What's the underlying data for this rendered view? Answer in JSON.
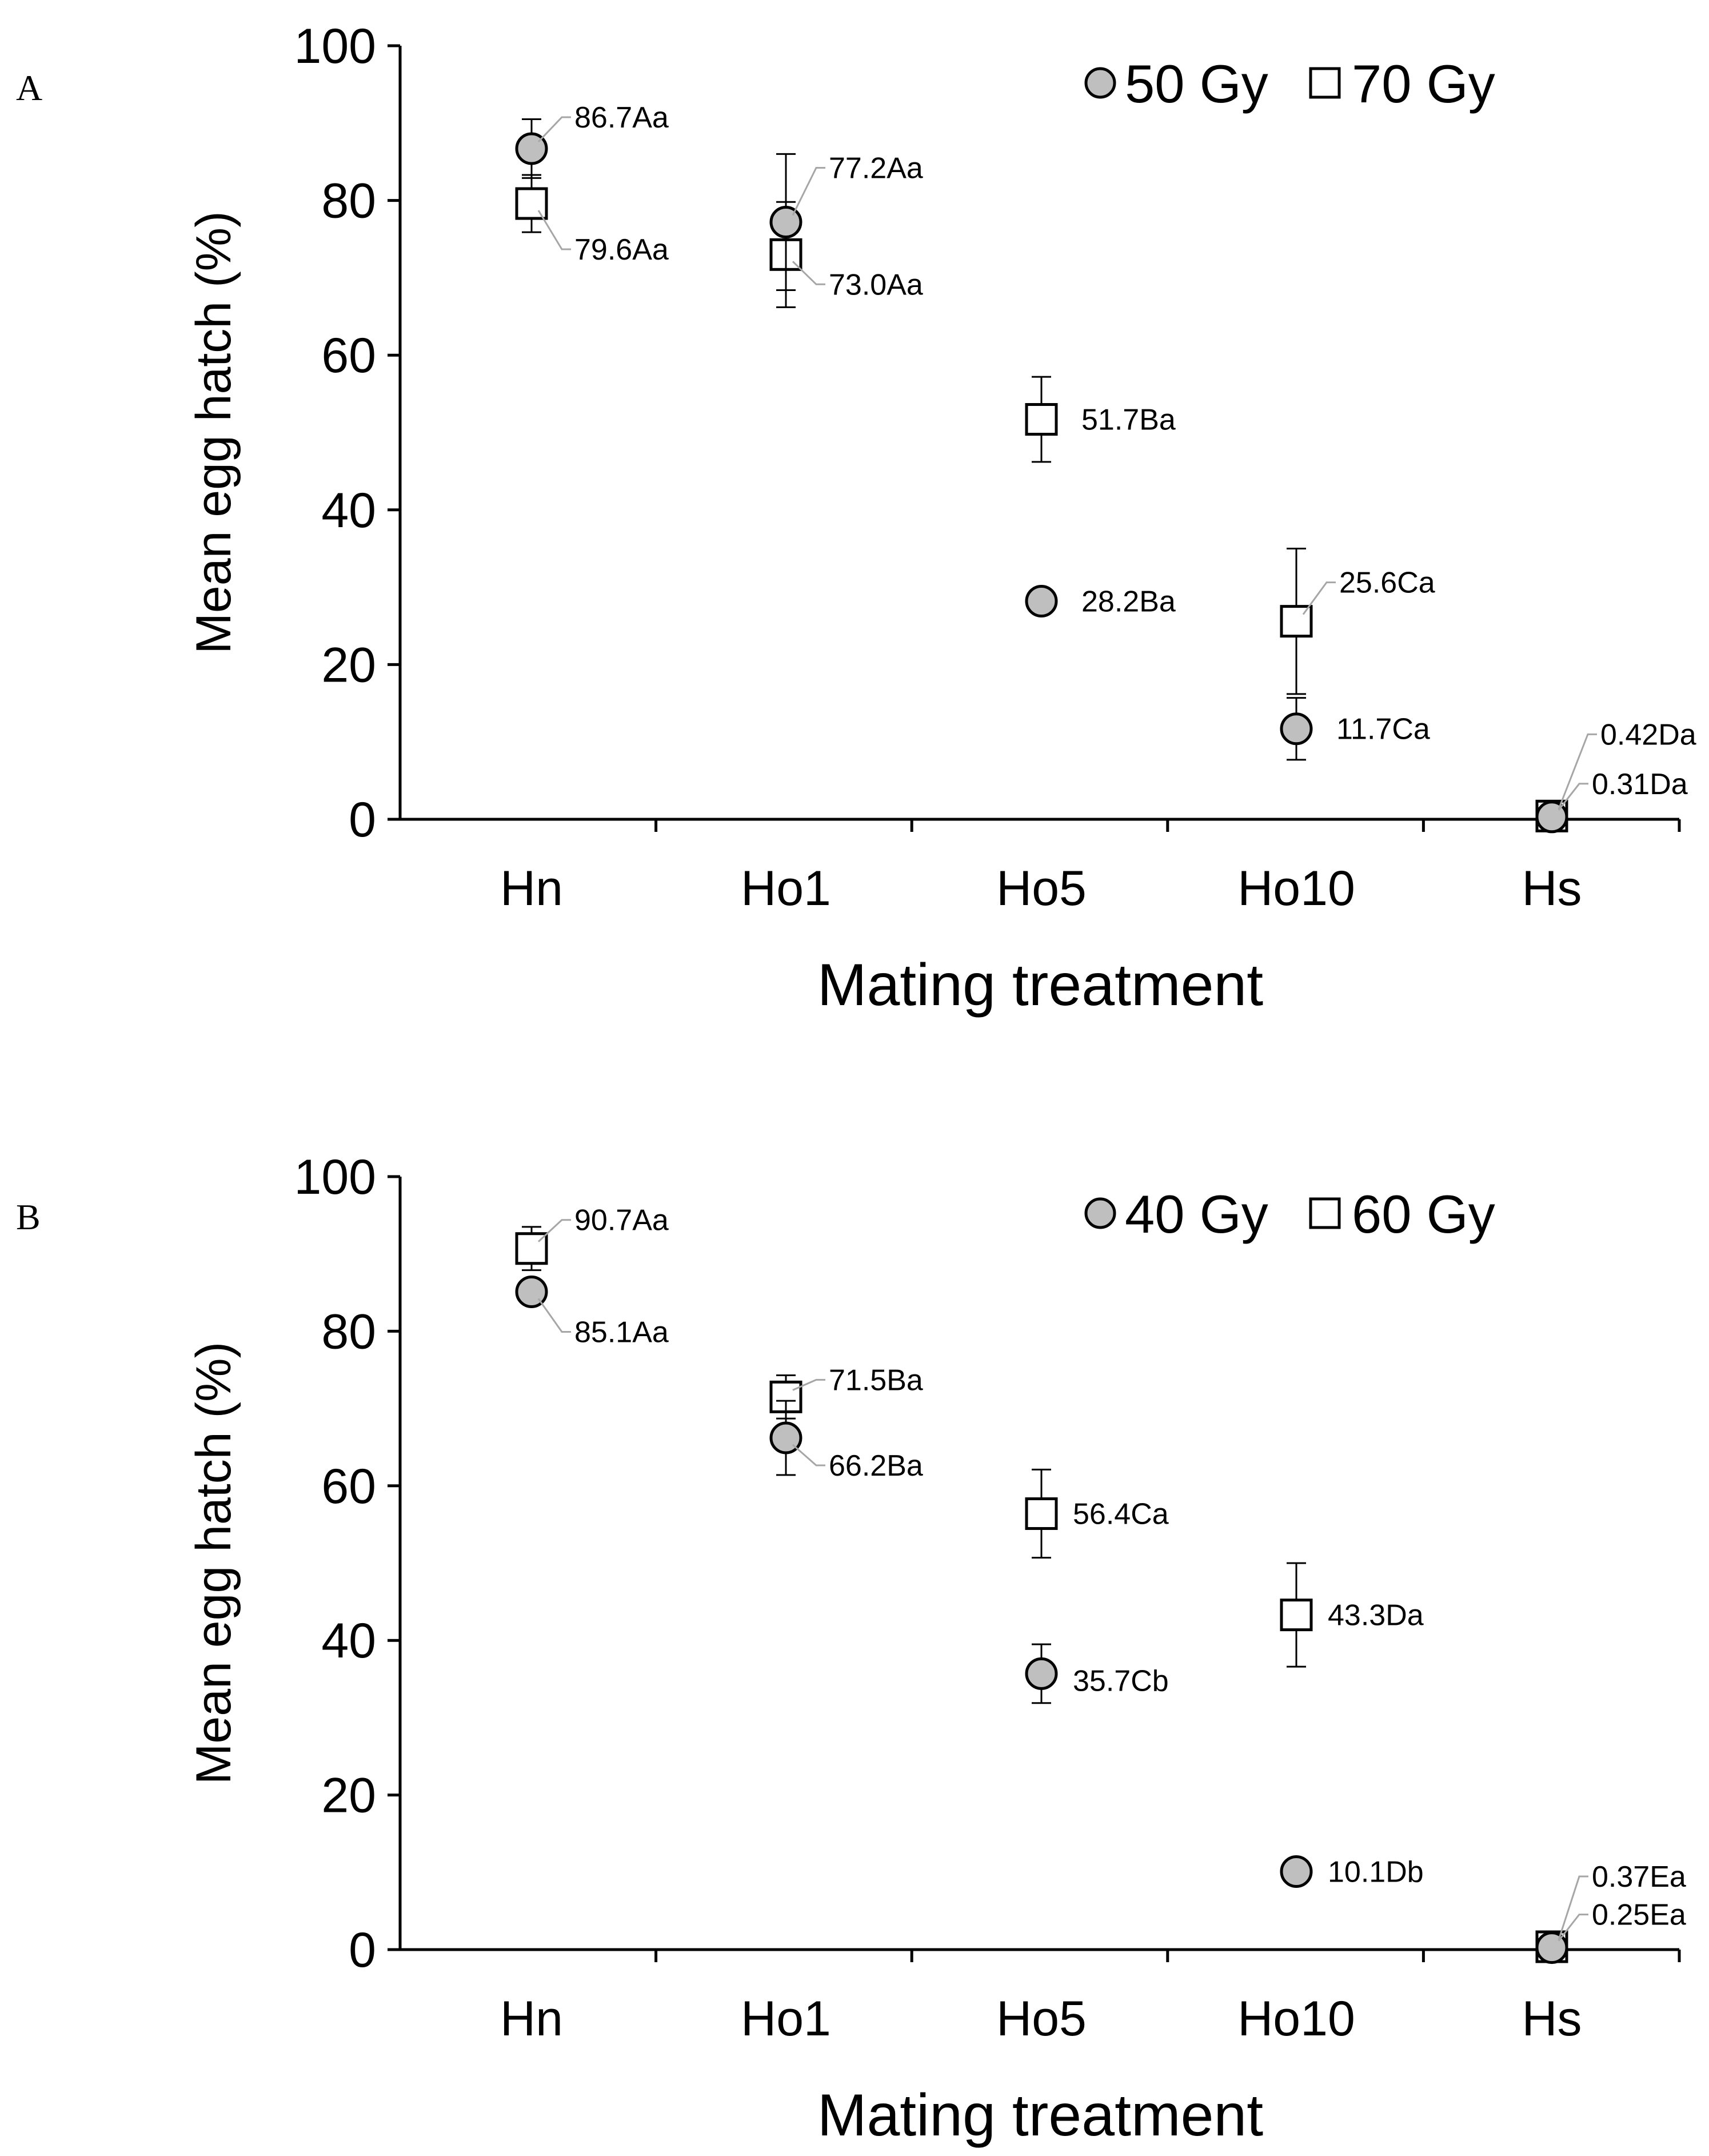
{
  "chart_data": [
    {
      "type": "scatter",
      "panel_label": "A",
      "categories": [
        "Hn",
        "Ho1",
        "Ho5",
        "Ho10",
        "Hs"
      ],
      "xlabel": "Mating treatment",
      "ylabel": "Mean egg hatch (%)",
      "ylim": [
        0,
        100
      ],
      "yticks": [
        "0",
        "20",
        "40",
        "60",
        "80",
        "100"
      ],
      "grid": false,
      "legend_position": "top-right",
      "series": [
        {
          "name": "50 Gy",
          "marker": "circle",
          "fill": "#bfbfbf",
          "values": [
            86.7,
            77.2,
            28.2,
            11.7,
            0.31
          ],
          "errors": [
            3.8,
            8.8,
            1.5,
            4.0,
            0.2
          ],
          "labels": [
            "86.7Aa",
            "77.2Aa",
            "28.2Ba",
            "11.7Ca",
            "0.31Da"
          ]
        },
        {
          "name": "70 Gy",
          "marker": "square",
          "fill": "#ffffff",
          "values": [
            79.6,
            73.0,
            51.7,
            25.6,
            0.42
          ],
          "errors": [
            3.7,
            6.8,
            5.5,
            9.4,
            0.2
          ],
          "labels": [
            "79.6Aa",
            "73.0Aa",
            "51.7Ba",
            "25.6Ca",
            "0.42Da"
          ]
        }
      ]
    },
    {
      "type": "scatter",
      "panel_label": "B",
      "categories": [
        "Hn",
        "Ho1",
        "Ho5",
        "Ho10",
        "Hs"
      ],
      "xlabel": "Mating treatment",
      "ylabel": "Mean egg hatch (%)",
      "ylim": [
        0,
        100
      ],
      "yticks": [
        "0",
        "20",
        "40",
        "60",
        "80",
        "100"
      ],
      "grid": false,
      "legend_position": "top-right",
      "series": [
        {
          "name": "40 Gy",
          "marker": "circle",
          "fill": "#bfbfbf",
          "values": [
            85.1,
            66.2,
            35.7,
            10.1,
            0.25
          ],
          "errors": [
            0.8,
            4.8,
            3.8,
            0.8,
            0.2
          ],
          "labels": [
            "85.1Aa",
            "66.2Ba",
            "35.7Cb",
            "10.1Db",
            "0.25Ea"
          ]
        },
        {
          "name": "60 Gy",
          "marker": "square",
          "fill": "#ffffff",
          "values": [
            90.7,
            71.5,
            56.4,
            43.3,
            0.37
          ],
          "errors": [
            2.8,
            2.8,
            5.7,
            6.7,
            0.2
          ],
          "labels": [
            "90.7Aa",
            "71.5Ba",
            "56.4Ca",
            "43.3Da",
            "0.37Ea"
          ]
        }
      ]
    }
  ]
}
